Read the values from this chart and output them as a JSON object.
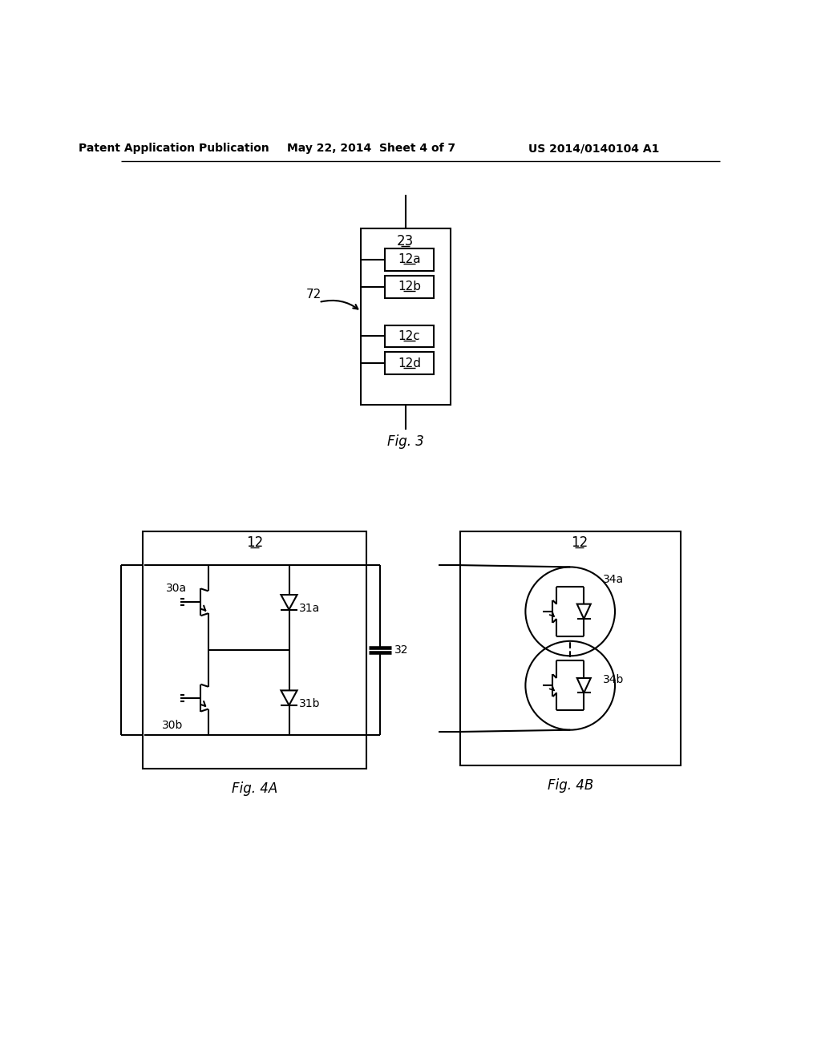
{
  "bg_color": "#ffffff",
  "text_color": "#000000",
  "header_left": "Patent Application Publication",
  "header_mid": "May 22, 2014  Sheet 4 of 7",
  "header_right": "US 2014/0140104 A1",
  "line_color": "#000000",
  "line_width": 1.5
}
